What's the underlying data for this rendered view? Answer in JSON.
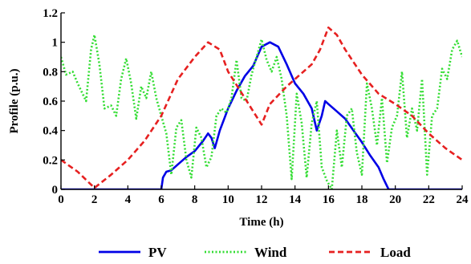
{
  "chart_data": {
    "type": "line",
    "xlabel": "Time (h)",
    "ylabel": "Profile (p.u.)",
    "xlim": [
      0,
      24
    ],
    "ylim": [
      0,
      1.2
    ],
    "x_ticks": [
      0,
      2,
      4,
      6,
      8,
      10,
      12,
      14,
      16,
      18,
      20,
      22,
      24
    ],
    "y_ticks": [
      0,
      0.2,
      0.4,
      0.6,
      0.8,
      1,
      1.2
    ],
    "y_tick_labels": [
      "0",
      "0.2",
      "0.4",
      "0.6",
      "0.8",
      "1",
      "1.2"
    ],
    "grid": false,
    "legend_position": "bottom",
    "series": [
      {
        "name": "PV",
        "color": "#0000e6",
        "dash": "solid",
        "points": [
          [
            0,
            0
          ],
          [
            6,
            0
          ],
          [
            6.1,
            0.08
          ],
          [
            6.3,
            0.12
          ],
          [
            6.6,
            0.13
          ],
          [
            7,
            0.17
          ],
          [
            7.5,
            0.22
          ],
          [
            8,
            0.26
          ],
          [
            8.5,
            0.33
          ],
          [
            8.8,
            0.38
          ],
          [
            9,
            0.35
          ],
          [
            9.2,
            0.28
          ],
          [
            9.5,
            0.4
          ],
          [
            10,
            0.55
          ],
          [
            10.5,
            0.67
          ],
          [
            11,
            0.77
          ],
          [
            11.5,
            0.84
          ],
          [
            12,
            0.97
          ],
          [
            12.5,
            1.0
          ],
          [
            13,
            0.97
          ],
          [
            13.5,
            0.85
          ],
          [
            14,
            0.72
          ],
          [
            14.5,
            0.65
          ],
          [
            15,
            0.55
          ],
          [
            15.3,
            0.4
          ],
          [
            15.6,
            0.5
          ],
          [
            15.8,
            0.6
          ],
          [
            16,
            0.58
          ],
          [
            16.5,
            0.53
          ],
          [
            17,
            0.48
          ],
          [
            17.5,
            0.4
          ],
          [
            18,
            0.32
          ],
          [
            18.5,
            0.23
          ],
          [
            19,
            0.15
          ],
          [
            19.3,
            0.07
          ],
          [
            19.6,
            0
          ],
          [
            24,
            0
          ]
        ]
      },
      {
        "name": "Wind",
        "color": "#33dd33",
        "dash": "dotted",
        "points": [
          [
            0,
            0.9
          ],
          [
            0.3,
            0.78
          ],
          [
            0.7,
            0.8
          ],
          [
            1,
            0.72
          ],
          [
            1.5,
            0.6
          ],
          [
            1.8,
            0.95
          ],
          [
            2,
            1.05
          ],
          [
            2.3,
            0.85
          ],
          [
            2.6,
            0.55
          ],
          [
            3,
            0.57
          ],
          [
            3.3,
            0.5
          ],
          [
            3.6,
            0.75
          ],
          [
            3.9,
            0.89
          ],
          [
            4.2,
            0.72
          ],
          [
            4.5,
            0.48
          ],
          [
            4.8,
            0.7
          ],
          [
            5.1,
            0.62
          ],
          [
            5.4,
            0.8
          ],
          [
            5.7,
            0.62
          ],
          [
            6,
            0.5
          ],
          [
            6.3,
            0.38
          ],
          [
            6.6,
            0.1
          ],
          [
            6.9,
            0.42
          ],
          [
            7.2,
            0.47
          ],
          [
            7.5,
            0.2
          ],
          [
            7.8,
            0.08
          ],
          [
            8.1,
            0.42
          ],
          [
            8.4,
            0.35
          ],
          [
            8.7,
            0.15
          ],
          [
            9,
            0.22
          ],
          [
            9.3,
            0.5
          ],
          [
            9.6,
            0.55
          ],
          [
            9.9,
            0.52
          ],
          [
            10.2,
            0.62
          ],
          [
            10.5,
            0.88
          ],
          [
            10.8,
            0.62
          ],
          [
            11.1,
            0.6
          ],
          [
            11.4,
            0.78
          ],
          [
            11.7,
            0.9
          ],
          [
            12,
            1.02
          ],
          [
            12.3,
            0.88
          ],
          [
            12.6,
            0.8
          ],
          [
            12.9,
            0.9
          ],
          [
            13.2,
            0.75
          ],
          [
            13.5,
            0.5
          ],
          [
            13.8,
            0.07
          ],
          [
            14.1,
            0.65
          ],
          [
            14.4,
            0.45
          ],
          [
            14.7,
            0.08
          ],
          [
            15.0,
            0.45
          ],
          [
            15.3,
            0.6
          ],
          [
            15.6,
            0.15
          ],
          [
            15.9,
            0.06
          ],
          [
            16.2,
            0.0
          ],
          [
            16.5,
            0.4
          ],
          [
            16.8,
            0.15
          ],
          [
            17.1,
            0.5
          ],
          [
            17.4,
            0.55
          ],
          [
            17.7,
            0.25
          ],
          [
            18,
            0.1
          ],
          [
            18.3,
            0.72
          ],
          [
            18.6,
            0.55
          ],
          [
            18.9,
            0.3
          ],
          [
            19.2,
            0.62
          ],
          [
            19.5,
            0.18
          ],
          [
            19.8,
            0.42
          ],
          [
            20.1,
            0.5
          ],
          [
            20.4,
            0.8
          ],
          [
            20.7,
            0.35
          ],
          [
            21,
            0.55
          ],
          [
            21.3,
            0.4
          ],
          [
            21.6,
            0.75
          ],
          [
            21.9,
            0.1
          ],
          [
            22.2,
            0.5
          ],
          [
            22.5,
            0.55
          ],
          [
            22.8,
            0.82
          ],
          [
            23.1,
            0.75
          ],
          [
            23.4,
            0.95
          ],
          [
            23.7,
            1.01
          ],
          [
            24,
            0.9
          ]
        ]
      },
      {
        "name": "Load",
        "color": "#e62020",
        "dash": "dashed",
        "points": [
          [
            0,
            0.2
          ],
          [
            1,
            0.12
          ],
          [
            2,
            0.01
          ],
          [
            3,
            0.1
          ],
          [
            4,
            0.2
          ],
          [
            5,
            0.33
          ],
          [
            6,
            0.5
          ],
          [
            7,
            0.75
          ],
          [
            8,
            0.9
          ],
          [
            8.8,
            1.0
          ],
          [
            9.5,
            0.95
          ],
          [
            10,
            0.8
          ],
          [
            11,
            0.62
          ],
          [
            12,
            0.44
          ],
          [
            12.5,
            0.58
          ],
          [
            13.5,
            0.7
          ],
          [
            14,
            0.75
          ],
          [
            15,
            0.85
          ],
          [
            15.5,
            0.95
          ],
          [
            16,
            1.1
          ],
          [
            16.5,
            1.05
          ],
          [
            17,
            0.95
          ],
          [
            18,
            0.78
          ],
          [
            19,
            0.65
          ],
          [
            20,
            0.58
          ],
          [
            21,
            0.5
          ],
          [
            22,
            0.38
          ],
          [
            23,
            0.28
          ],
          [
            24,
            0.2
          ]
        ]
      }
    ]
  }
}
